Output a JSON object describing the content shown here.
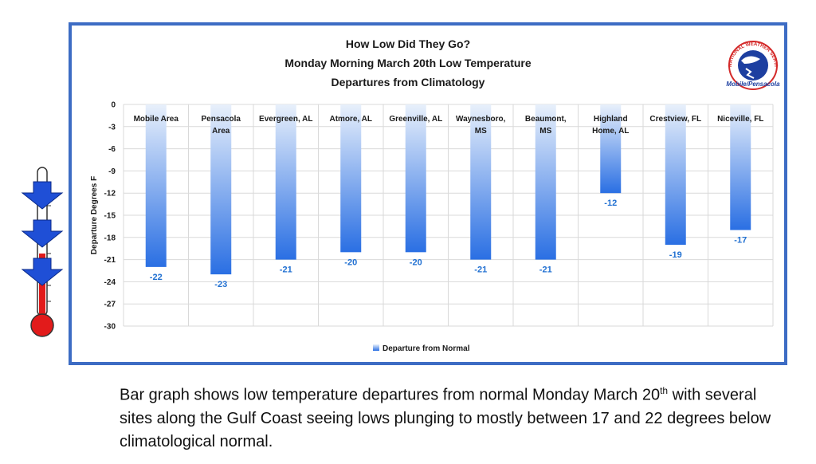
{
  "chart_data": {
    "type": "bar",
    "title_lines": [
      "How Low Did They Go?",
      "Monday Morning March 20th Low Temperature",
      "Departures from Climatology"
    ],
    "ylabel": "Departure Degrees F",
    "xlabel": "",
    "ylim": [
      -30,
      0
    ],
    "yticks": [
      0,
      -3,
      -6,
      -9,
      -12,
      -15,
      -18,
      -21,
      -24,
      -27,
      -30
    ],
    "categories": [
      [
        "Mobile Area"
      ],
      [
        "Pensacola",
        "Area"
      ],
      [
        "Evergreen, AL"
      ],
      [
        "Atmore, AL"
      ],
      [
        "Greenville, AL"
      ],
      [
        "Waynesboro,",
        "MS"
      ],
      [
        "Beaumont,",
        "MS"
      ],
      [
        "Highland",
        "Home, AL"
      ],
      [
        "Crestview, FL"
      ],
      [
        "Niceville, FL"
      ]
    ],
    "series": [
      {
        "name": "Departure from Normal",
        "values": [
          -22,
          -23,
          -21,
          -20,
          -20,
          -21,
          -21,
          -12,
          -19,
          -17
        ]
      }
    ],
    "grid": true,
    "legend": "bottom-center",
    "colors": {
      "bar_top": "#e8f0fb",
      "bar_bottom": "#2a6fe3",
      "label": "#1f6fd1",
      "frame": "#3d6cc4"
    }
  },
  "logo": {
    "caption": "Mobile/Pensacola",
    "ring_text": "NATIONAL WEATHER SERVICE"
  },
  "caption": {
    "part1": "Bar graph shows low temperature departures from normal Monday March 20",
    "sup": "th",
    "part2": "with several sites along the Gulf Coast seeing lows plunging to mostly between 17 and 22 degrees below climatological normal."
  },
  "decor": {
    "icon": "thermometer-down-arrows-icon"
  }
}
